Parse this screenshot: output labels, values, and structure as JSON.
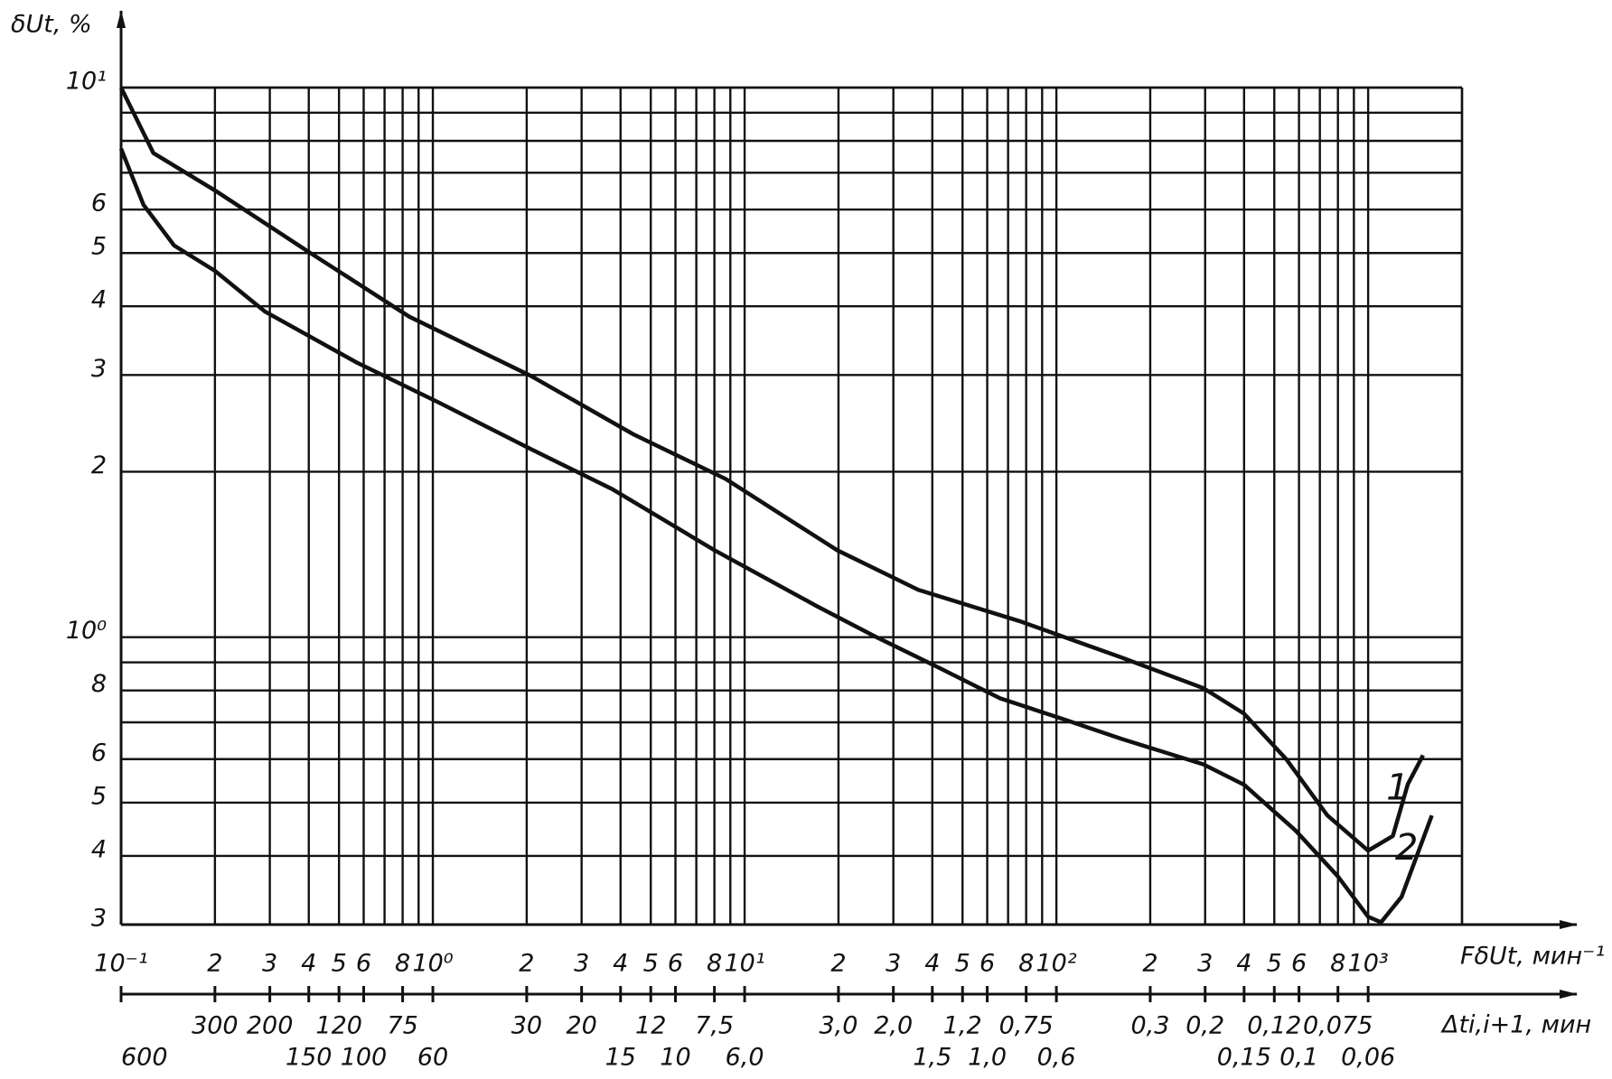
{
  "chart_data": {
    "type": "line",
    "x_scale": "log",
    "y_scale": "log",
    "grid": true,
    "y_label": "δUt, %",
    "x_label": "FδUt, мин⁻¹",
    "x2_label": "Δti,i+1, мин",
    "xlim": [
      0.1,
      2000
    ],
    "ylim": [
      0.3,
      10
    ],
    "x2lim": [
      600,
      0.03
    ],
    "yticks": [
      {
        "value": 10,
        "label": "10¹"
      },
      6,
      5,
      4,
      3,
      2,
      {
        "value": 1,
        "label": "10⁰"
      },
      {
        "value": 0.8,
        "label": "8"
      },
      {
        "value": 0.6,
        "label": "6"
      },
      {
        "value": 0.5,
        "label": "5"
      },
      {
        "value": 0.4,
        "label": "4"
      },
      {
        "value": 0.3,
        "label": "3"
      }
    ],
    "y_minor_ticks": [
      9,
      8,
      7,
      0.9,
      0.7
    ],
    "xticks": [
      {
        "value": 0.1,
        "label": "10⁻¹"
      },
      {
        "value": 0.2,
        "label": "2"
      },
      {
        "value": 0.3,
        "label": "3"
      },
      {
        "value": 0.4,
        "label": "4"
      },
      {
        "value": 0.5,
        "label": "5"
      },
      {
        "value": 0.6,
        "label": "6"
      },
      {
        "value": 0.8,
        "label": "8"
      },
      {
        "value": 1,
        "label": "10⁰"
      },
      2,
      3,
      4,
      5,
      6,
      8,
      {
        "value": 10,
        "label": "10¹"
      },
      {
        "value": 20,
        "label": "2"
      },
      {
        "value": 30,
        "label": "3"
      },
      {
        "value": 40,
        "label": "4"
      },
      {
        "value": 50,
        "label": "5"
      },
      {
        "value": 60,
        "label": "6"
      },
      {
        "value": 80,
        "label": "8"
      },
      {
        "value": 100,
        "label": "10²"
      },
      {
        "value": 200,
        "label": "2"
      },
      {
        "value": 300,
        "label": "3"
      },
      {
        "value": 400,
        "label": "4"
      },
      {
        "value": 500,
        "label": "5"
      },
      {
        "value": 600,
        "label": "6"
      },
      {
        "value": 800,
        "label": "8"
      },
      {
        "value": 1000,
        "label": "10³"
      }
    ],
    "x_minor_ticks": [
      0.7,
      0.9,
      7,
      9,
      70,
      90,
      700,
      900,
      2000
    ],
    "x2ticks": [
      600,
      300,
      200,
      150,
      120,
      100,
      75,
      60,
      30,
      20,
      15,
      12,
      10,
      {
        "value": 7.5,
        "label": "7,5"
      },
      {
        "value": 6,
        "label": "6,0"
      },
      {
        "value": 3,
        "label": "3,0"
      },
      {
        "value": 2,
        "label": "2,0"
      },
      {
        "value": 1.5,
        "label": "1,5"
      },
      {
        "value": 1.2,
        "label": "1,2"
      },
      {
        "value": 1,
        "label": "1,0"
      },
      {
        "value": 0.75,
        "label": "0,75"
      },
      {
        "value": 0.6,
        "label": "0,6"
      },
      {
        "value": 0.3,
        "label": "0,3"
      },
      {
        "value": 0.2,
        "label": "0,2"
      },
      {
        "value": 0.15,
        "label": "0,15"
      },
      {
        "value": 0.12,
        "label": "0,12"
      },
      {
        "value": 0.1,
        "label": "0,1"
      },
      {
        "value": 0.075,
        "label": "0,075"
      },
      {
        "value": 0.06,
        "label": "0,06"
      }
    ],
    "x": [
      0.1,
      0.127,
      0.2,
      0.394,
      0.84,
      2.06,
      4.4,
      8.7,
      19.8,
      36,
      76,
      162,
      296,
      400,
      546,
      740,
      1000,
      1200,
      1340,
      1500
    ],
    "series": [
      {
        "name": "1",
        "color": "#111111",
        "x": [
          0.1,
          0.127,
          0.2,
          0.394,
          0.84,
          2.06,
          4.4,
          8.7,
          19.8,
          36,
          76,
          162,
          296,
          400,
          546,
          740,
          1000,
          1200,
          1340,
          1500
        ],
        "values": [
          10,
          7.6,
          6.5,
          5.05,
          3.83,
          2.99,
          2.34,
          1.94,
          1.44,
          1.22,
          1.07,
          0.918,
          0.808,
          0.726,
          0.6,
          0.474,
          0.409,
          0.435,
          0.54,
          0.61
        ]
      },
      {
        "name": "2",
        "color": "#111111",
        "x": [
          0.1,
          0.118,
          0.148,
          0.2,
          0.29,
          0.57,
          1.05,
          2.06,
          3.76,
          8.0,
          17,
          26.5,
          42,
          66,
          104,
          162,
          296,
          400,
          585,
          800,
          1000,
          1100,
          1280,
          1600
        ],
        "values": [
          7.74,
          6.12,
          5.16,
          4.64,
          3.91,
          3.16,
          2.67,
          2.2,
          1.86,
          1.44,
          1.14,
          1.0,
          0.88,
          0.774,
          0.711,
          0.653,
          0.587,
          0.539,
          0.445,
          0.367,
          0.31,
          0.303,
          0.337,
          0.474
        ]
      }
    ]
  }
}
